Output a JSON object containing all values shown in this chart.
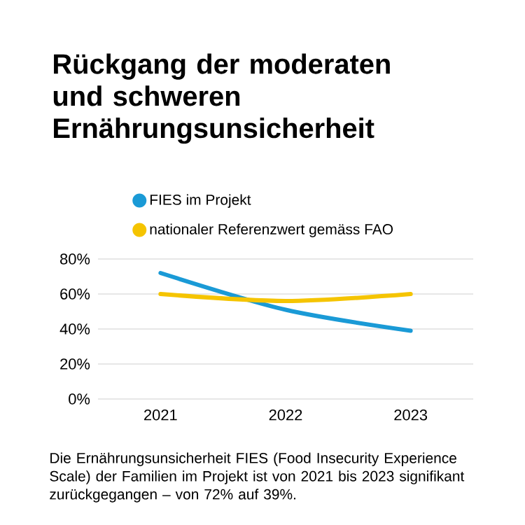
{
  "chart_data": {
    "type": "line",
    "title": "Rückgang der moderaten und schweren Ernährungsunsicherheit",
    "categories": [
      "2021",
      "2022",
      "2023"
    ],
    "series": [
      {
        "name": "FIES im Projekt",
        "color": "#1a9ad6",
        "values": [
          72,
          51,
          39
        ]
      },
      {
        "name": "nationaler Referenzwert gemäss FAO",
        "color": "#f5c400",
        "values": [
          60,
          56,
          60
        ]
      }
    ],
    "ylim": [
      0,
      80
    ],
    "yticks": [
      {
        "value": 0,
        "label": "0%"
      },
      {
        "value": 20,
        "label": "20%"
      },
      {
        "value": 40,
        "label": "40%"
      },
      {
        "value": 60,
        "label": "60%"
      },
      {
        "value": 80,
        "label": "80%"
      }
    ],
    "grid": "y",
    "legend": "top left",
    "marker": "none",
    "line_style": "solid",
    "annotations": [
      "Die Ernährungsunsicherheit FIES (Food Insecurity Experience Scale) der Familien im Projekt ist von 2021 bis 2023 signifikant zurückgegangen – von 72% auf 39%."
    ]
  }
}
